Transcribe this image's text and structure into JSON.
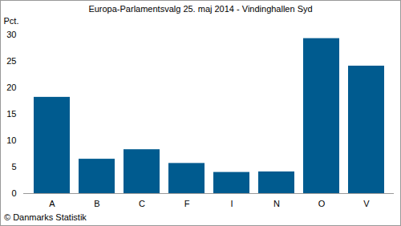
{
  "chart_data": {
    "type": "bar",
    "title": "Europa-Parlamentsvalg 25. maj 2014 - Vindinghallen Syd",
    "y_label": "Pct.",
    "caption": "© Danmarks Statistik",
    "categories": [
      "A",
      "B",
      "C",
      "F",
      "I",
      "N",
      "O",
      "V"
    ],
    "values": [
      18.2,
      6.5,
      8.3,
      5.7,
      4.0,
      4.1,
      29.3,
      24.1
    ],
    "color": "#005b8f",
    "ylim": [
      0,
      30
    ],
    "yticks": [
      0,
      5,
      10,
      15,
      20,
      25,
      30
    ],
    "grid": false
  }
}
